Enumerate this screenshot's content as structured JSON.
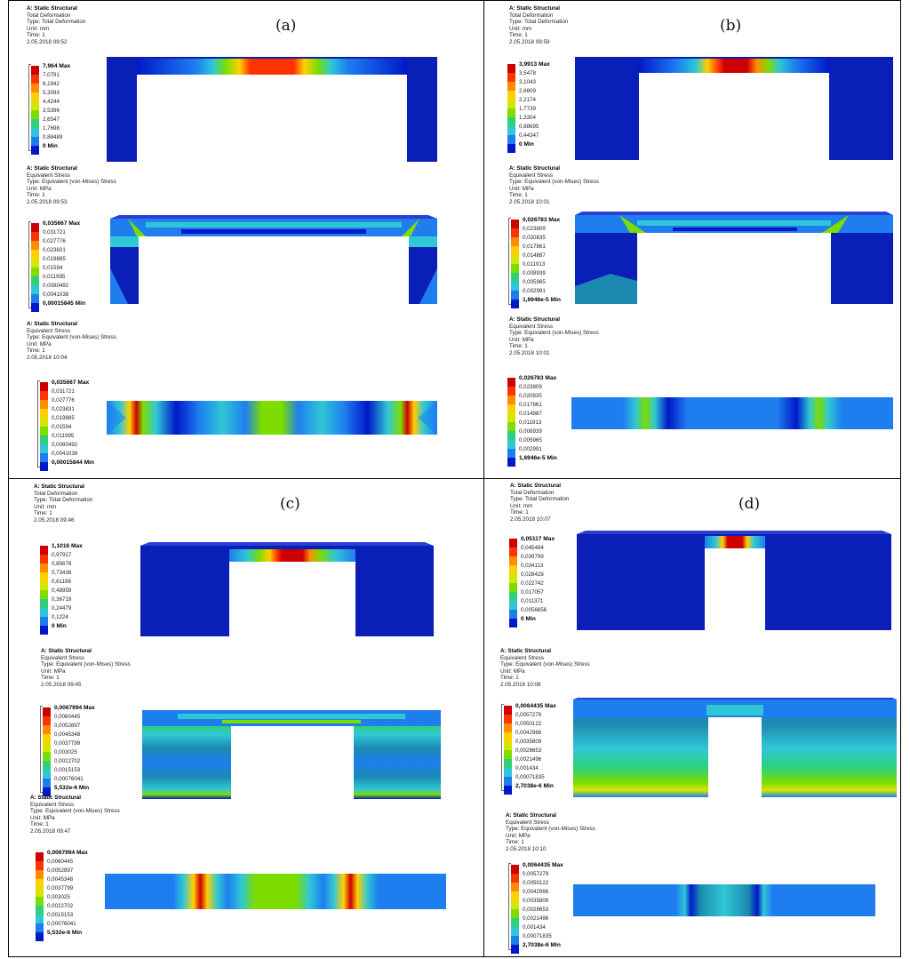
{
  "panels": [
    {
      "label": "(a)",
      "plots": [
        {
          "header": [
            "A: Static Structural",
            "Total Deformation",
            "Type: Total Deformation",
            "Unit: mm",
            "Time: 1",
            "2.05.2018 09:52"
          ],
          "legend": [
            "7,964 Max",
            "7,0791",
            "6,1942",
            "5,3093",
            "4,4244",
            "3,5396",
            "2,6547",
            "1,7698",
            "0,88489",
            "0 Min"
          ],
          "model": {
            "view": "frame",
            "type": "deformation"
          }
        },
        {
          "header": [
            "A: Static Structural",
            "Equivalent Stress",
            "Type: Equivalent (von-Mises) Stress",
            "Unit: MPa",
            "Time: 1",
            "2.05.2018 09:53"
          ],
          "legend": [
            "0,035667 Max",
            "0,031721",
            "0,027776",
            "0,023831",
            "0,019885",
            "0,01594",
            "0,011995",
            "0,0080492",
            "0,0041038",
            "0,00015845 Min"
          ],
          "model": {
            "view": "frame",
            "type": "stress"
          }
        },
        {
          "header": [
            "A: Static Structural",
            "Equivalent Stress",
            "Type: Equivalent (von-Mises) Stress",
            "Unit: MPa",
            "Time: 1",
            "2.05.2018 10:04"
          ],
          "legend": [
            "0,035667 Max",
            "0,031721",
            "0,027776",
            "0,023831",
            "0,019885",
            "0,01594",
            "0,011995",
            "0,0080492",
            "0,0041038",
            "0,00015844 Min"
          ],
          "model": {
            "view": "strip",
            "type": "stress"
          }
        }
      ]
    },
    {
      "label": "(b)",
      "plots": [
        {
          "header": [
            "A: Static Structural",
            "Total Deformation",
            "Type: Total Deformation",
            "Unit: mm",
            "Time: 1",
            "2.05.2018 09:59"
          ],
          "legend": [
            "3,9913 Max",
            "3,5478",
            "3,1043",
            "2,6609",
            "2,2174",
            "1,7739",
            "1,3304",
            "0,88695",
            "0,44347",
            "0 Min"
          ],
          "model": {
            "view": "frame",
            "type": "deformation"
          }
        },
        {
          "header": [
            "A: Static Structural",
            "Equivalent Stress",
            "Type: Equivalent (von-Mises) Stress",
            "Unit: MPa",
            "Time: 1",
            "2.05.2018 10:01"
          ],
          "legend": [
            "0,026783 Max",
            "0,023809",
            "0,020835",
            "0,017861",
            "0,014887",
            "0,011913",
            "0,008939",
            "0,005965",
            "0,002991",
            "1,6946e-5 Min"
          ],
          "model": {
            "view": "frame",
            "type": "stress"
          }
        },
        {
          "header": [
            "A: Static Structural",
            "Equivalent Stress",
            "Type: Equivalent (von-Mises) Stress",
            "Unit: MPa",
            "Time: 1",
            "2.05.2018 10:01"
          ],
          "legend": [
            "0,026783 Max",
            "0,023809",
            "0,020835",
            "0,017861",
            "0,014887",
            "0,011913",
            "0,008939",
            "0,005965",
            "0,002991",
            "1,6946e-5 Min"
          ],
          "model": {
            "view": "strip",
            "type": "stress"
          }
        }
      ]
    },
    {
      "label": "(c)",
      "plots": [
        {
          "header": [
            "A: Static Structural",
            "Total Deformation",
            "Type: Total Deformation",
            "Unit: mm",
            "Time: 1",
            "2.05.2018 09:46"
          ],
          "legend": [
            "1,1016 Max",
            "0,97917",
            "0,85678",
            "0,73438",
            "0,61198",
            "0,48959",
            "0,36719",
            "0,24479",
            "0,1224",
            "0 Min"
          ],
          "model": {
            "view": "frame",
            "type": "deformation"
          }
        },
        {
          "header": [
            "A: Static Structural",
            "Equivalent Stress",
            "Type: Equivalent (von-Mises) Stress",
            "Unit: MPa",
            "Time: 1",
            "2.05.2018 09:45"
          ],
          "legend": [
            "0,0067994 Max",
            "0,0060445",
            "0,0052897",
            "0,0045348",
            "0,0037799",
            "0,003025",
            "0,0022702",
            "0,0015153",
            "0,00076041",
            "5,532e-6 Min"
          ],
          "model": {
            "view": "frame",
            "type": "stress"
          }
        },
        {
          "header": [
            "A: Static Structural",
            "Equivalent Stress",
            "Type: Equivalent (von-Mises) Stress",
            "Unit: MPa",
            "Time: 1",
            "2.05.2018 09:47"
          ],
          "legend": [
            "0,0067994 Max",
            "0,0060445",
            "0,0052897",
            "0,0045348",
            "0,0037799",
            "0,003025",
            "0,0022702",
            "0,0015153",
            "0,00076041",
            "5,532e-6 Min"
          ],
          "model": {
            "view": "strip",
            "type": "stress"
          }
        }
      ]
    },
    {
      "label": "(d)",
      "plots": [
        {
          "header": [
            "A: Static Structural",
            "Total Deformation",
            "Type: Total Deformation",
            "Unit: mm",
            "Time: 1",
            "2.05.2018 10:07"
          ],
          "legend": [
            "0,05117 Max",
            "0,045484",
            "0,039799",
            "0,034113",
            "0,028428",
            "0,022742",
            "0,017057",
            "0,011371",
            "0,0056856",
            "0 Min"
          ],
          "model": {
            "view": "frame",
            "type": "deformation"
          }
        },
        {
          "header": [
            "A: Static Structural",
            "Equivalent Stress",
            "Type: Equivalent (von-Mises) Stress",
            "Unit: MPa",
            "Time: 1",
            "2.05.2018 10:08"
          ],
          "legend": [
            "0,0064435 Max",
            "0,0057279",
            "0,0050122",
            "0,0042966",
            "0,0035809",
            "0,0028653",
            "0,0021496",
            "0,001434",
            "0,00071835",
            "2,7038e-6 Min"
          ],
          "model": {
            "view": "frame",
            "type": "stress"
          }
        },
        {
          "header": [
            "A: Static Structural",
            "Equivalent Stress",
            "Type: Equivalent (von-Mises) Stress",
            "Unit: MPa",
            "Time: 1",
            "2.05.2018 10:10"
          ],
          "legend": [
            "0,0064435 Max",
            "0,0057279",
            "0,0050122",
            "0,0042966",
            "0,0035809",
            "0,0028653",
            "0,0021496",
            "0,001434",
            "0,00071835",
            "2,7038e-6 Min"
          ],
          "model": {
            "view": "strip",
            "type": "stress"
          }
        }
      ]
    }
  ],
  "colormap": [
    "#cc0000",
    "#ff3300",
    "#ff8c00",
    "#ffd000",
    "#d6e600",
    "#7ddc00",
    "#2fd07a",
    "#2fc7d6",
    "#1e7ef0",
    "#0018c8"
  ]
}
